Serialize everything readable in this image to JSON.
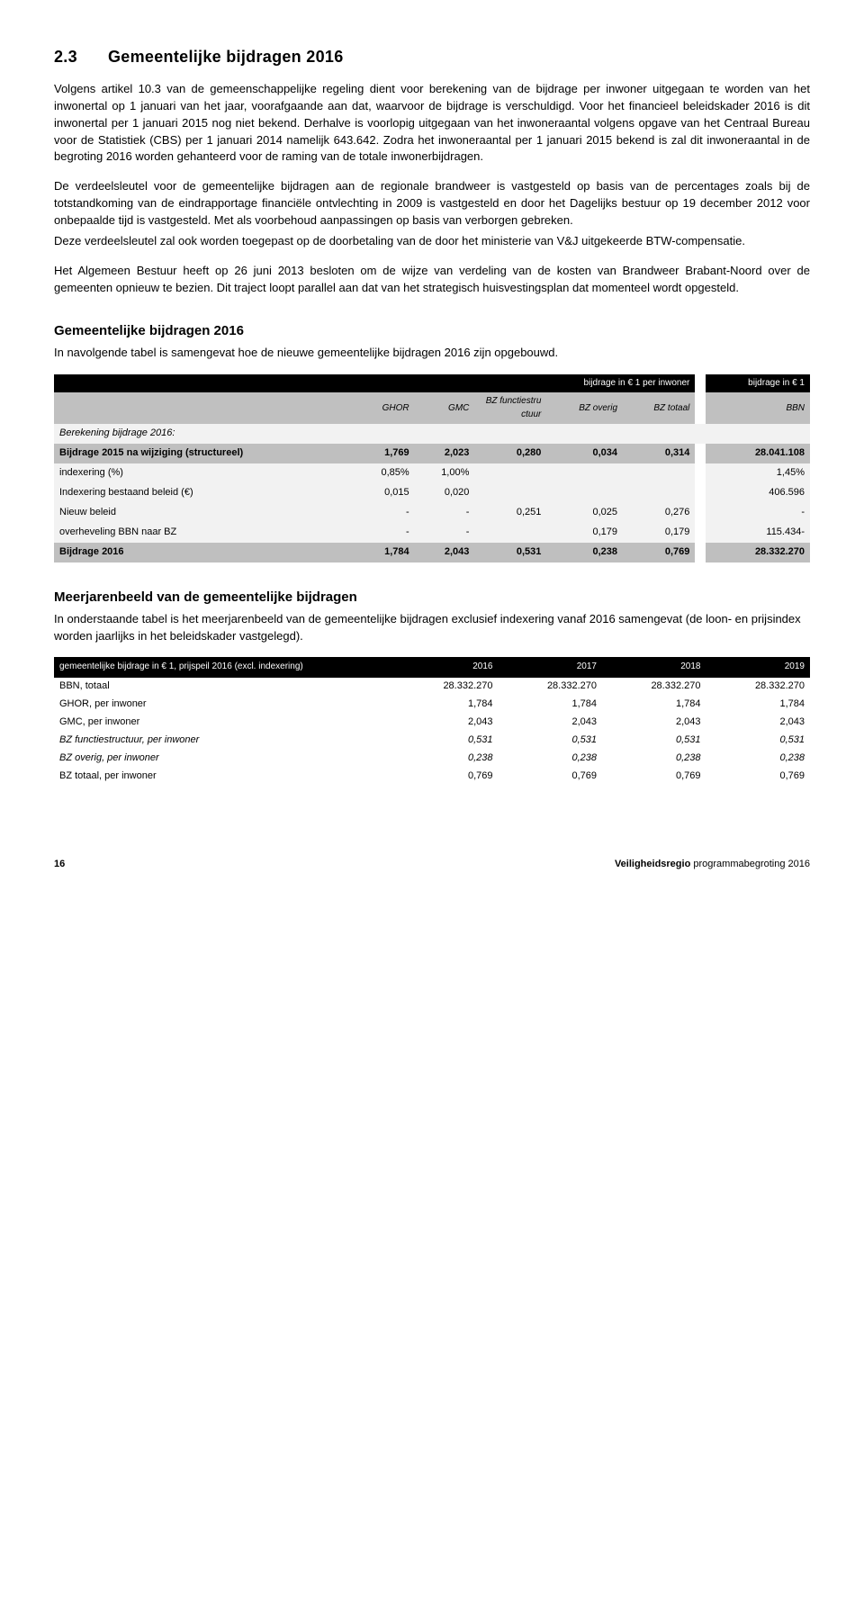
{
  "heading": {
    "num": "2.3",
    "title": "Gemeentelijke bijdragen 2016"
  },
  "para1": "Volgens artikel 10.3 van de gemeenschappelijke regeling dient voor berekening van de bijdrage per inwoner uitgegaan te worden van het inwonertal op 1 januari van het jaar, voorafgaande aan dat, waarvoor de bijdrage is verschuldigd. Voor het financieel beleidskader 2016 is dit inwonertal per 1 januari 2015 nog niet bekend. Derhalve is voorlopig uitgegaan van het inwoneraantal volgens opgave van het Centraal Bureau voor de Statistiek (CBS) per 1 januari 2014 namelijk 643.642. Zodra het inwoneraantal per 1 januari 2015 bekend is zal dit inwoneraantal in de begroting 2016 worden gehanteerd voor de raming van de totale inwonerbijdragen.",
  "para2": "De verdeelsleutel voor de gemeentelijke bijdragen aan de regionale brandweer is vastgesteld op basis van de percentages zoals bij de totstandkoming van de eindrapportage financiële ontvlechting in 2009 is vastgesteld en door het Dagelijks bestuur op 19 december 2012 voor onbepaalde tijd is vastgesteld. Met als voorbehoud aanpassingen op basis van verborgen gebreken.",
  "para3": "Deze verdeelsleutel zal ook worden toegepast op de doorbetaling van de door het ministerie van V&J uitgekeerde BTW-compensatie.",
  "para4": "Het Algemeen Bestuur heeft op 26 juni 2013 besloten om de wijze van verdeling van de kosten van Brandweer Brabant-Noord over de gemeenten opnieuw te bezien. Dit traject loopt parallel aan dat van het strategisch huisvestingsplan dat momenteel wordt opgesteld.",
  "sub1_title": "Gemeentelijke bijdragen 2016",
  "sub1_intro": "In navolgende tabel is samengevat hoe de nieuwe gemeentelijke bijdragen 2016 zijn opgebouwd.",
  "table1": {
    "hdr1_span": "bijdrage in € 1 per inwoner",
    "hdr1_last": "bijdrage in € 1",
    "cols": [
      "",
      "GHOR",
      "GMC",
      "BZ functiestru ctuur",
      "BZ overig",
      "BZ totaal",
      "BBN"
    ],
    "section_label": "Berekening bijdrage 2016:",
    "rows": [
      {
        "cls": "mid2",
        "c": [
          "Bijdrage 2015 na wijziging (structureel)",
          "1,769",
          "2,023",
          "0,280",
          "0,034",
          "0,314",
          "28.041.108"
        ]
      },
      {
        "cls": "light",
        "c": [
          "indexering (%)",
          "0,85%",
          "1,00%",
          "",
          "",
          "",
          "1,45%"
        ]
      },
      {
        "cls": "light",
        "c": [
          "Indexering bestaand beleid (€)",
          "0,015",
          "0,020",
          "",
          "",
          "",
          "406.596"
        ]
      },
      {
        "cls": "light",
        "c": [
          "Nieuw beleid",
          "-",
          "-",
          "0,251",
          "0,025",
          "0,276",
          "-"
        ]
      },
      {
        "cls": "light",
        "c": [
          "overheveling BBN naar BZ",
          "-",
          "-",
          "",
          "0,179",
          "0,179",
          "115.434-"
        ]
      },
      {
        "cls": "mid2",
        "c": [
          "Bijdrage 2016",
          "1,784",
          "2,043",
          "0,531",
          "0,238",
          "0,769",
          "28.332.270"
        ]
      }
    ]
  },
  "sub2_title": "Meerjarenbeeld van de gemeentelijke bijdragen",
  "sub2_intro": "In onderstaande tabel is het meerjarenbeeld van de gemeentelijke bijdragen exclusief indexering vanaf 2016 samengevat (de loon- en prijsindex worden jaarlijks in het beleidskader vastgelegd).",
  "table2": {
    "header": [
      "gemeentelijke bijdrage in € 1, prijspeil 2016 (excl. indexering)",
      "2016",
      "2017",
      "2018",
      "2019"
    ],
    "rows": [
      {
        "cls": "normal",
        "c": [
          "BBN, totaal",
          "28.332.270",
          "28.332.270",
          "28.332.270",
          "28.332.270"
        ]
      },
      {
        "cls": "normal",
        "c": [
          "GHOR, per inwoner",
          "1,784",
          "1,784",
          "1,784",
          "1,784"
        ]
      },
      {
        "cls": "normal",
        "c": [
          "GMC, per inwoner",
          "2,043",
          "2,043",
          "2,043",
          "2,043"
        ]
      },
      {
        "cls": "italic",
        "c": [
          "BZ functiestructuur, per inwoner",
          "0,531",
          "0,531",
          "0,531",
          "0,531"
        ]
      },
      {
        "cls": "italic",
        "c": [
          "BZ overig, per inwoner",
          "0,238",
          "0,238",
          "0,238",
          "0,238"
        ]
      },
      {
        "cls": "normal",
        "c": [
          "BZ totaal, per inwoner",
          "0,769",
          "0,769",
          "0,769",
          "0,769"
        ]
      }
    ]
  },
  "footer": {
    "page": "16",
    "right_bold": "Veiligheidsregio",
    "right_rest": " programmabegroting 2016"
  }
}
